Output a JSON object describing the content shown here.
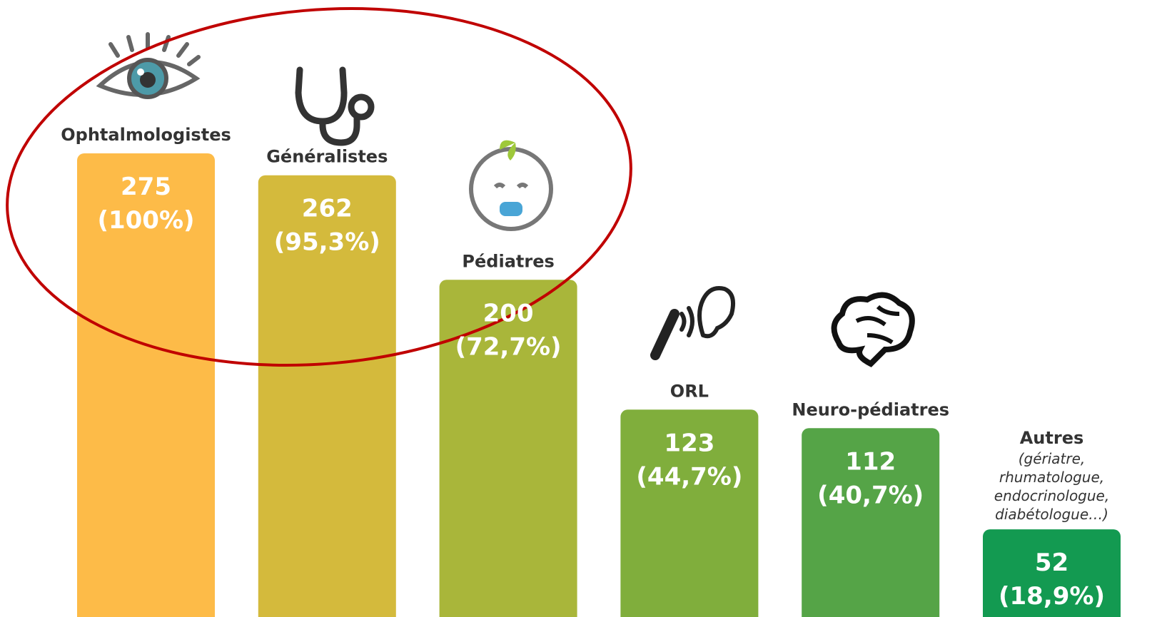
{
  "chart_data": {
    "type": "bar",
    "categories": [
      "Ophtalmologistes",
      "Généralistes",
      "Pédiatres",
      "ORL",
      "Neuro-pédiatres",
      "Autres"
    ],
    "values": [
      275,
      262,
      200,
      123,
      112,
      52
    ],
    "percent_labels": [
      "(100%)",
      "(95,3%)",
      "(72,7%)",
      "(44,7%)",
      "(40,7%)",
      "(18,9%)"
    ],
    "colors": [
      "#fdbb48",
      "#d4ba3c",
      "#a9b63a",
      "#80ae3c",
      "#55a447",
      "#139a51"
    ],
    "annotation": "(gériatre, rhumatologue, endocrinologue, diabétologue…)",
    "ylim": [
      0,
      275
    ]
  }
}
